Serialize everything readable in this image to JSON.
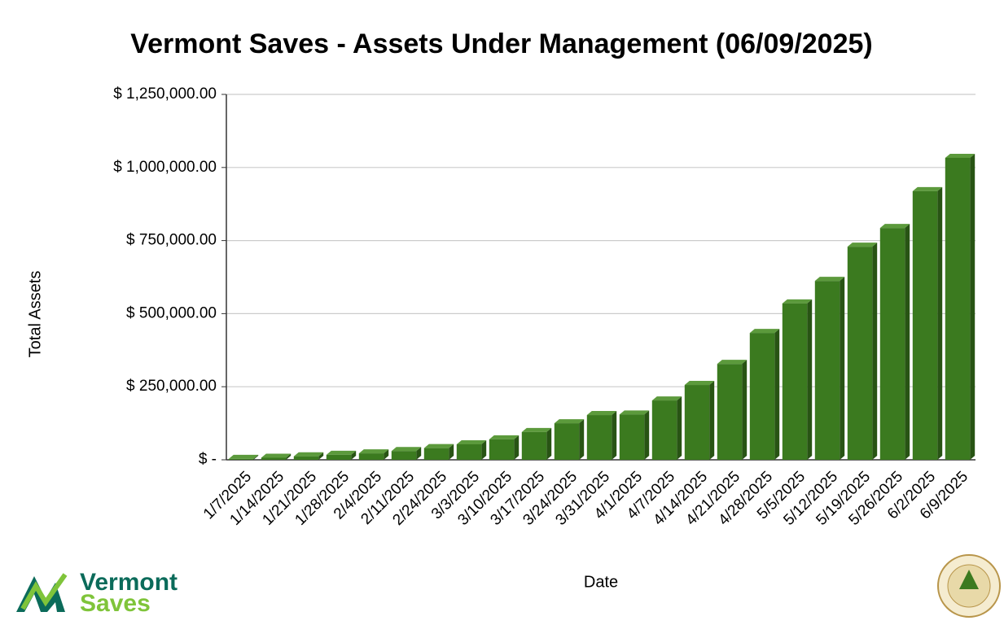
{
  "chart_data": {
    "type": "bar3d",
    "title": "Vermont Saves - Assets Under Management (06/09/2025)",
    "x_label": "Date",
    "y_label": "Total Assets",
    "categories": [
      "1/7/2025",
      "1/14/2025",
      "1/21/2025",
      "1/28/2025",
      "2/4/2025",
      "2/11/2025",
      "2/24/2025",
      "3/3/2025",
      "3/10/2025",
      "3/17/2025",
      "3/24/2025",
      "3/31/2025",
      "4/1/2025",
      "4/7/2025",
      "4/14/2025",
      "4/21/2025",
      "4/28/2025",
      "5/5/2025",
      "5/12/2025",
      "5/19/2025",
      "5/26/2025",
      "6/2/2025",
      "6/9/2025"
    ],
    "values": [
      3000,
      7000,
      12000,
      17000,
      22000,
      30000,
      40000,
      53000,
      70000,
      95000,
      125000,
      153000,
      155000,
      203000,
      256000,
      328000,
      434000,
      535000,
      612000,
      729000,
      793000,
      919000,
      1033000
    ],
    "color": "#3b7a1f",
    "ylim": [
      0,
      1250000
    ],
    "yticks": [
      {
        "value": 0,
        "label": "$ -"
      },
      {
        "value": 250000,
        "label": "$ 250,000.00"
      },
      {
        "value": 500000,
        "label": "$ 500,000.00"
      },
      {
        "value": 750000,
        "label": "$ 750,000.00"
      },
      {
        "value": 1000000,
        "label": "$ 1,000,000.00"
      },
      {
        "value": 1250000,
        "label": "$ 1,250,000.00"
      }
    ],
    "grid": true
  },
  "branding": {
    "logo_line1": "Vermont",
    "logo_line2": "Saves"
  }
}
